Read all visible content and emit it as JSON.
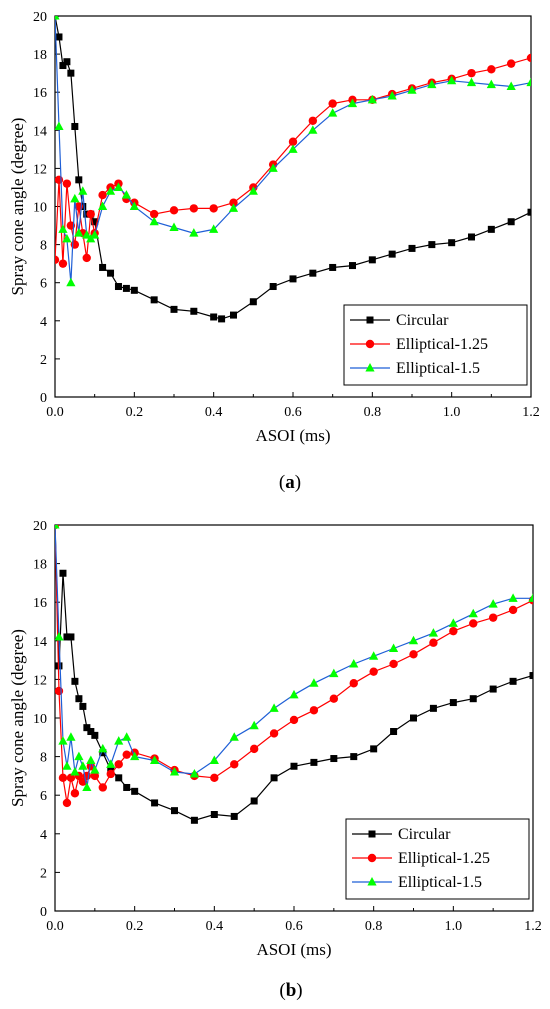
{
  "chart_data": [
    {
      "type": "line",
      "panel_label": "a",
      "xlabel": "ASOI (ms)",
      "ylabel": "Spray cone angle (degree)",
      "xlim": [
        0,
        1.2
      ],
      "ylim": [
        0,
        20
      ],
      "xticks": [
        "0.0",
        "0.2",
        "0.4",
        "0.6",
        "0.8",
        "1.0",
        "1.2"
      ],
      "yticks": [
        "0",
        "2",
        "4",
        "6",
        "8",
        "10",
        "12",
        "14",
        "16",
        "18",
        "20"
      ],
      "legend_position": "bottom-right",
      "series": [
        {
          "name": "Circular",
          "color": "#000000",
          "marker": "square",
          "x": [
            0.0,
            0.01,
            0.02,
            0.03,
            0.04,
            0.05,
            0.06,
            0.07,
            0.08,
            0.09,
            0.1,
            0.12,
            0.14,
            0.16,
            0.18,
            0.2,
            0.25,
            0.3,
            0.35,
            0.4,
            0.42,
            0.45,
            0.5,
            0.55,
            0.6,
            0.65,
            0.7,
            0.75,
            0.8,
            0.85,
            0.9,
            0.95,
            1.0,
            1.05,
            1.1,
            1.15,
            1.2
          ],
          "y": [
            20.0,
            18.9,
            17.4,
            17.6,
            17.0,
            14.2,
            11.4,
            10.0,
            9.6,
            9.6,
            9.2,
            6.8,
            6.5,
            5.8,
            5.7,
            5.6,
            5.1,
            4.6,
            4.5,
            4.2,
            4.1,
            4.3,
            5.0,
            5.8,
            6.2,
            6.5,
            6.8,
            6.9,
            7.2,
            7.5,
            7.8,
            8.0,
            8.1,
            8.4,
            8.8,
            9.2,
            9.7
          ]
        },
        {
          "name": "Elliptical-1.25",
          "color": "#ff0000",
          "marker": "circle",
          "x": [
            0.0,
            0.01,
            0.02,
            0.03,
            0.04,
            0.05,
            0.06,
            0.07,
            0.08,
            0.09,
            0.1,
            0.12,
            0.14,
            0.16,
            0.18,
            0.2,
            0.25,
            0.3,
            0.35,
            0.4,
            0.45,
            0.5,
            0.55,
            0.6,
            0.65,
            0.7,
            0.75,
            0.8,
            0.85,
            0.9,
            0.95,
            1.0,
            1.05,
            1.1,
            1.15,
            1.2
          ],
          "y": [
            7.2,
            11.4,
            7.0,
            11.2,
            9.0,
            8.0,
            10.0,
            8.6,
            7.3,
            9.6,
            8.6,
            10.6,
            11.0,
            11.2,
            10.4,
            10.2,
            9.6,
            9.8,
            9.9,
            9.9,
            10.2,
            11.0,
            12.2,
            13.4,
            14.5,
            15.4,
            15.6,
            15.6,
            15.9,
            16.2,
            16.5,
            16.7,
            17.0,
            17.2,
            17.5,
            17.8
          ]
        },
        {
          "name": "Elliptical-1.5",
          "color": "#00ff00",
          "line_color": "#1f5fd6",
          "marker": "triangle",
          "x": [
            0.0,
            0.01,
            0.02,
            0.03,
            0.04,
            0.05,
            0.06,
            0.07,
            0.08,
            0.09,
            0.1,
            0.12,
            0.14,
            0.16,
            0.18,
            0.2,
            0.25,
            0.3,
            0.35,
            0.4,
            0.45,
            0.5,
            0.55,
            0.6,
            0.65,
            0.7,
            0.75,
            0.8,
            0.85,
            0.9,
            0.95,
            1.0,
            1.05,
            1.1,
            1.15,
            1.2
          ],
          "y": [
            20.0,
            14.2,
            8.8,
            8.3,
            6.0,
            10.4,
            8.6,
            10.8,
            8.5,
            8.3,
            8.5,
            10.0,
            10.8,
            11.0,
            10.6,
            10.0,
            9.2,
            8.9,
            8.6,
            8.8,
            9.9,
            10.8,
            12.0,
            13.0,
            14.0,
            14.9,
            15.4,
            15.6,
            15.8,
            16.1,
            16.4,
            16.6,
            16.5,
            16.4,
            16.3,
            16.5
          ]
        }
      ]
    },
    {
      "type": "line",
      "panel_label": "b",
      "xlabel": "ASOI (ms)",
      "ylabel": "Spray cone angle (degree)",
      "xlim": [
        0,
        1.2
      ],
      "ylim": [
        0,
        20
      ],
      "xticks": [
        "0.0",
        "0.2",
        "0.4",
        "0.6",
        "0.8",
        "1.0",
        "1.2"
      ],
      "yticks": [
        "0",
        "2",
        "4",
        "6",
        "8",
        "10",
        "12",
        "14",
        "16",
        "18",
        "20"
      ],
      "legend_position": "bottom-right",
      "series": [
        {
          "name": "Circular",
          "color": "#000000",
          "marker": "square",
          "x": [
            0.0,
            0.01,
            0.02,
            0.03,
            0.04,
            0.05,
            0.06,
            0.07,
            0.08,
            0.09,
            0.1,
            0.12,
            0.14,
            0.16,
            0.18,
            0.2,
            0.25,
            0.3,
            0.35,
            0.4,
            0.45,
            0.5,
            0.55,
            0.6,
            0.65,
            0.7,
            0.75,
            0.8,
            0.85,
            0.9,
            0.95,
            1.0,
            1.05,
            1.1,
            1.15,
            1.2
          ],
          "y": [
            20.0,
            12.7,
            17.5,
            14.2,
            14.2,
            11.9,
            11.0,
            10.6,
            9.5,
            9.3,
            9.1,
            8.2,
            7.3,
            6.9,
            6.4,
            6.2,
            5.6,
            5.2,
            4.7,
            5.0,
            4.9,
            5.7,
            6.9,
            7.5,
            7.7,
            7.9,
            8.0,
            8.4,
            9.3,
            10.0,
            10.5,
            10.8,
            11.0,
            11.5,
            11.9,
            12.2
          ]
        },
        {
          "name": "Elliptical-1.25",
          "color": "#ff0000",
          "marker": "circle",
          "x": [
            0.0,
            0.01,
            0.02,
            0.03,
            0.04,
            0.05,
            0.06,
            0.07,
            0.08,
            0.09,
            0.1,
            0.12,
            0.14,
            0.16,
            0.18,
            0.2,
            0.25,
            0.3,
            0.35,
            0.4,
            0.45,
            0.5,
            0.55,
            0.6,
            0.65,
            0.7,
            0.75,
            0.8,
            0.85,
            0.9,
            0.95,
            1.0,
            1.05,
            1.1,
            1.15,
            1.2
          ],
          "y": [
            20.0,
            11.4,
            6.9,
            5.6,
            6.9,
            6.1,
            7.0,
            6.7,
            7.0,
            7.5,
            7.0,
            6.4,
            7.1,
            7.6,
            8.1,
            8.2,
            7.9,
            7.3,
            7.0,
            6.9,
            7.6,
            8.4,
            9.2,
            9.9,
            10.4,
            11.0,
            11.8,
            12.4,
            12.8,
            13.3,
            13.9,
            14.5,
            14.9,
            15.2,
            15.6,
            16.1
          ]
        },
        {
          "name": "Elliptical-1.5",
          "color": "#00ff00",
          "line_color": "#1f5fd6",
          "marker": "triangle",
          "x": [
            0.0,
            0.01,
            0.02,
            0.03,
            0.04,
            0.05,
            0.06,
            0.07,
            0.08,
            0.09,
            0.1,
            0.12,
            0.14,
            0.16,
            0.18,
            0.2,
            0.25,
            0.3,
            0.35,
            0.4,
            0.45,
            0.5,
            0.55,
            0.6,
            0.65,
            0.7,
            0.75,
            0.8,
            0.85,
            0.9,
            0.95,
            1.0,
            1.05,
            1.1,
            1.15,
            1.2
          ],
          "y": [
            20.0,
            14.2,
            8.8,
            7.5,
            9.0,
            7.2,
            8.0,
            7.5,
            6.4,
            7.8,
            7.3,
            8.4,
            7.6,
            8.8,
            9.0,
            8.0,
            7.8,
            7.2,
            7.1,
            7.8,
            9.0,
            9.6,
            10.5,
            11.2,
            11.8,
            12.3,
            12.8,
            13.2,
            13.6,
            14.0,
            14.4,
            14.9,
            15.4,
            15.9,
            16.2,
            16.2
          ]
        }
      ]
    }
  ]
}
